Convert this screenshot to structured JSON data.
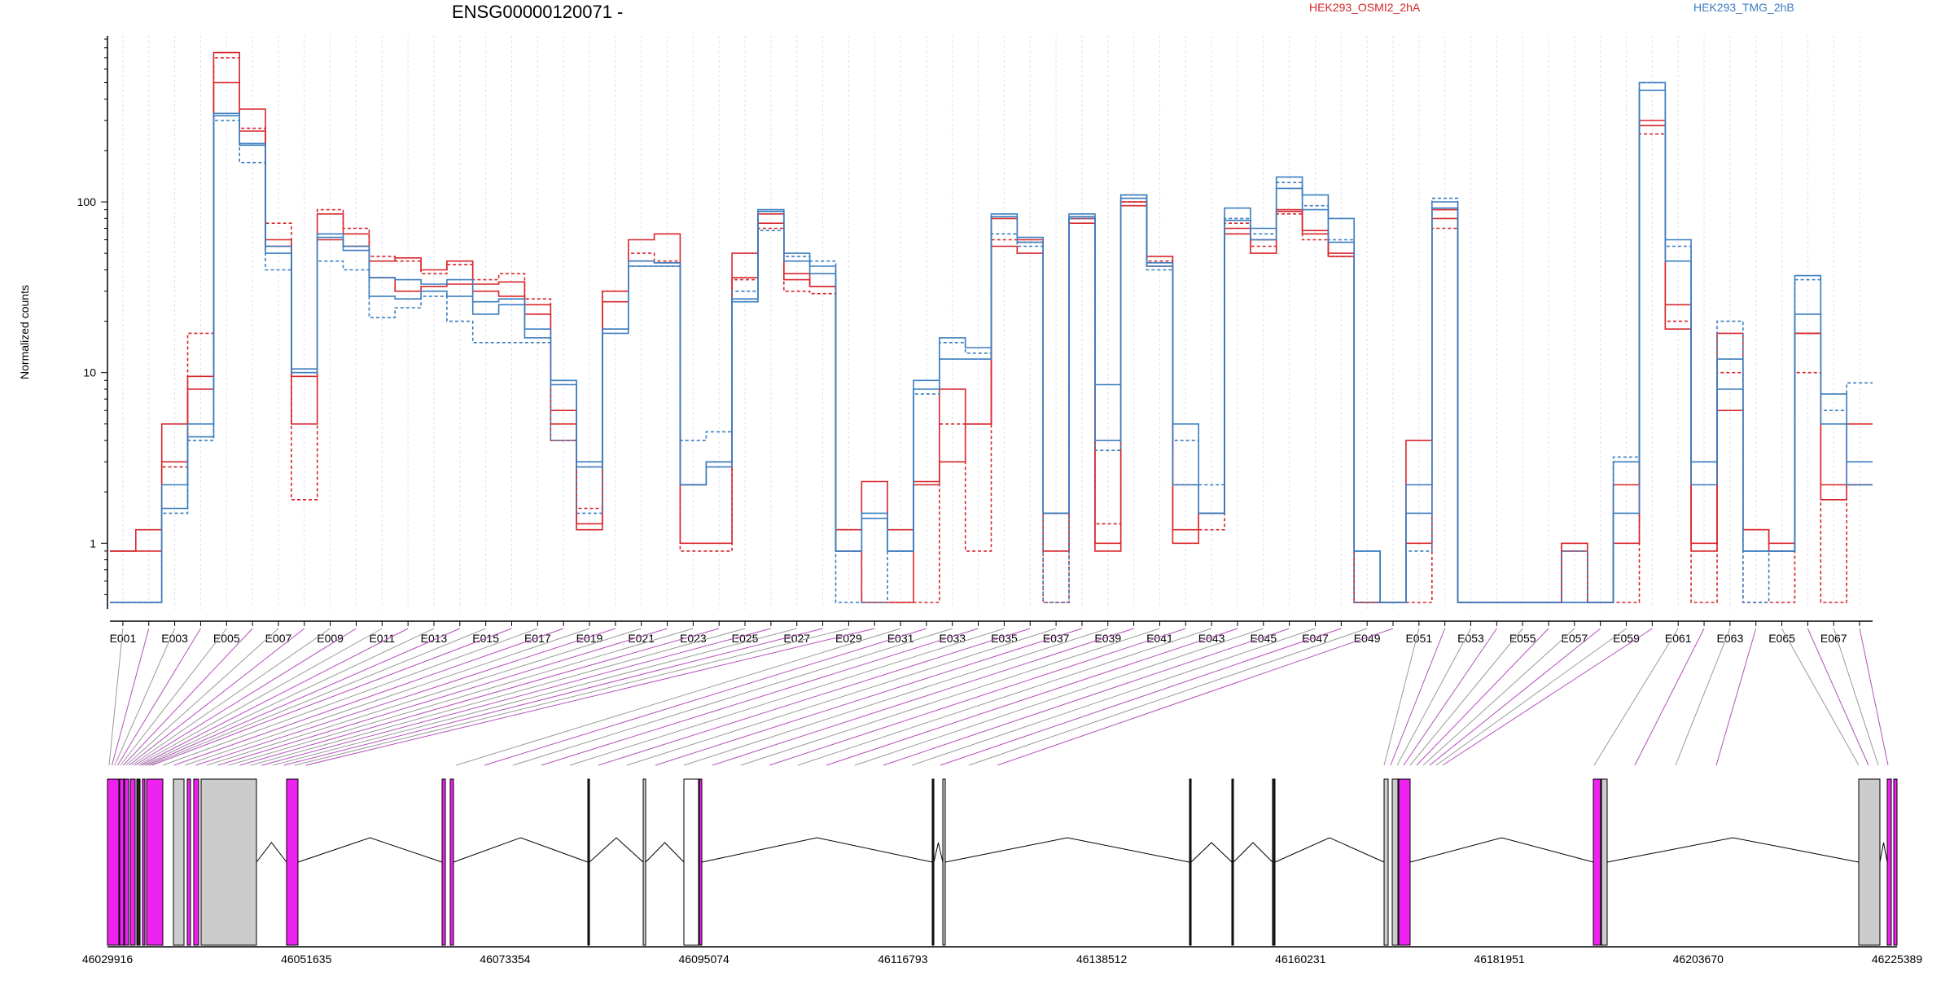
{
  "chart_data": {
    "type": "line",
    "title": "ENSG00000120071 -",
    "ylabel": "Normalized counts",
    "yscale": "log",
    "yticks": [
      "1",
      "10",
      "100"
    ],
    "ylim": [
      0.45,
      900
    ],
    "legend": [
      {
        "name": "HEK293_OSMI2_2hA",
        "color": "#d7262b"
      },
      {
        "name": "HEK293_TMG_2hB",
        "color": "#3a7dbf"
      }
    ],
    "categories": [
      "E001",
      "E002",
      "E003",
      "E004",
      "E005",
      "E006",
      "E007",
      "E008",
      "E009",
      "E010",
      "E011",
      "E012",
      "E013",
      "E014",
      "E015",
      "E016",
      "E017",
      "E018",
      "E019",
      "E020",
      "E021",
      "E022",
      "E023",
      "E024",
      "E025",
      "E026",
      "E027",
      "E028",
      "E029",
      "E030",
      "E031",
      "E032",
      "E033",
      "E034",
      "E035",
      "E036",
      "E037",
      "E038",
      "E039",
      "E040",
      "E041",
      "E042",
      "E043",
      "E044",
      "E045",
      "E046",
      "E047",
      "E048",
      "E049",
      "E050",
      "E051",
      "E052",
      "E053",
      "E054",
      "E055",
      "E056",
      "E057",
      "E058",
      "E059",
      "E060",
      "E061",
      "E062",
      "E063",
      "E064",
      "E065",
      "E066",
      "E067",
      "E068"
    ],
    "xtick_labels": [
      "E001",
      "E003",
      "E005",
      "E007",
      "E009",
      "E011",
      "E013",
      "E015",
      "E017",
      "E019",
      "E021",
      "E023",
      "E025",
      "E027",
      "E029",
      "E031",
      "E033",
      "E035",
      "E037",
      "E039",
      "E041",
      "E043",
      "E045",
      "E047",
      "E049",
      "E051",
      "E053",
      "E055",
      "E057",
      "E059",
      "E061",
      "E063",
      "E065",
      "E067"
    ],
    "series": [
      {
        "color": "#d7262b",
        "dash": "solid",
        "values": [
          0.9,
          1.2,
          5,
          9.5,
          750,
          350,
          60,
          5,
          85,
          65,
          45,
          47,
          40,
          45,
          33,
          34,
          25,
          6,
          1.2,
          30,
          60,
          65,
          1,
          1,
          50,
          85,
          35,
          32,
          1.2,
          2.3,
          1.2,
          2.3,
          8,
          5,
          80,
          60,
          1.5,
          80,
          1,
          100,
          48,
          1,
          1.5,
          70,
          60,
          90,
          65,
          50,
          0.45,
          0.45,
          4,
          80,
          0.45,
          0.45,
          0.45,
          0.45,
          1,
          0.45,
          2.2,
          280,
          25,
          1,
          6,
          1.2,
          1,
          17,
          2.2,
          5
        ]
      },
      {
        "color": "#d7262b",
        "dash": "dashed",
        "values": [
          0.45,
          0.45,
          2.8,
          17,
          700,
          270,
          75,
          1.8,
          90,
          70,
          48,
          45,
          38,
          43,
          35,
          38,
          27,
          4,
          1.6,
          30,
          50,
          45,
          0.9,
          0.9,
          35,
          70,
          30,
          29,
          1.2,
          0.45,
          0.45,
          0.45,
          5,
          0.9,
          60,
          58,
          0.45,
          80,
          1.3,
          100,
          45,
          2.2,
          1.2,
          75,
          55,
          85,
          60,
          48,
          0.45,
          0.45,
          0.45,
          70,
          0.45,
          0.45,
          0.45,
          0.45,
          1,
          0.45,
          0.45,
          250,
          20,
          0.45,
          10,
          0.45,
          0.45,
          10,
          0.45,
          2.2
        ]
      },
      {
        "color": "#d7262b",
        "dash": "solid",
        "values": [
          0.9,
          0.9,
          3,
          8,
          500,
          260,
          55,
          9.5,
          60,
          55,
          36,
          30,
          32,
          33,
          30,
          28,
          22,
          5,
          1.3,
          26,
          45,
          44,
          2.2,
          3,
          36,
          75,
          38,
          32,
          0.9,
          0.45,
          0.45,
          2.2,
          3,
          5,
          55,
          50,
          0.9,
          75,
          0.9,
          95,
          42,
          1.2,
          1.5,
          65,
          50,
          88,
          68,
          48,
          0.45,
          0.45,
          1,
          90,
          0.45,
          0.45,
          0.45,
          0.45,
          0.9,
          0.45,
          1,
          300,
          18,
          0.9,
          17,
          1.2,
          0.9,
          17,
          1.8,
          2.2
        ]
      },
      {
        "color": "#3a7dbf",
        "dash": "dashed",
        "values": [
          0.45,
          0.45,
          1.5,
          4,
          300,
          170,
          40,
          10,
          45,
          40,
          21,
          24,
          28,
          20,
          15,
          15,
          15,
          4,
          1.5,
          18,
          42,
          42,
          4,
          4.5,
          30,
          68,
          48,
          45,
          0.45,
          0.45,
          0.9,
          7.5,
          15,
          13,
          65,
          55,
          0.45,
          80,
          3.5,
          110,
          40,
          4,
          2.2,
          80,
          65,
          130,
          95,
          60,
          0.45,
          0.45,
          0.9,
          105,
          0.45,
          0.45,
          0.45,
          0.45,
          0.9,
          0.45,
          3.2,
          500,
          55,
          3,
          20,
          0.45,
          0.9,
          35,
          6,
          8.7
        ]
      },
      {
        "color": "#3a7dbf",
        "dash": "solid",
        "values": [
          0.45,
          0.45,
          2.2,
          5,
          330,
          220,
          55,
          10.5,
          65,
          55,
          36,
          35,
          33,
          35,
          26,
          27,
          18,
          9,
          3,
          18,
          45,
          44,
          2.2,
          3,
          27,
          90,
          50,
          42,
          0.9,
          1.5,
          0.9,
          9,
          16,
          14,
          85,
          62,
          1.5,
          85,
          8.5,
          110,
          44,
          5,
          1.5,
          92,
          70,
          140,
          110,
          80,
          0.9,
          0.45,
          2.2,
          100,
          0.45,
          0.45,
          0.45,
          0.45,
          0.45,
          0.45,
          3,
          500,
          60,
          3,
          12,
          0.9,
          0.9,
          37,
          7.5,
          3
        ]
      },
      {
        "color": "#3a7dbf",
        "dash": "solid",
        "values": [
          0.45,
          0.45,
          1.6,
          4.2,
          320,
          215,
          50,
          10,
          62,
          52,
          28,
          27,
          30,
          28,
          22,
          25,
          16,
          8.5,
          2.8,
          17,
          42,
          42,
          2.2,
          2.8,
          26,
          88,
          45,
          38,
          0.9,
          1.4,
          0.9,
          8,
          12,
          12,
          82,
          58,
          1.5,
          82,
          4,
          105,
          42,
          2.2,
          1.5,
          78,
          60,
          120,
          90,
          58,
          0.9,
          0.45,
          1.5,
          92,
          0.45,
          0.45,
          0.45,
          0.45,
          0.45,
          0.45,
          1.5,
          450,
          45,
          2.2,
          8,
          0.9,
          0.9,
          22,
          5,
          2.2
        ]
      }
    ],
    "coordinate_labels": [
      "46029916",
      "46051635",
      "46073354",
      "46095074",
      "46116793",
      "46138512",
      "46160231",
      "46181951",
      "46203670",
      "46225389"
    ]
  }
}
